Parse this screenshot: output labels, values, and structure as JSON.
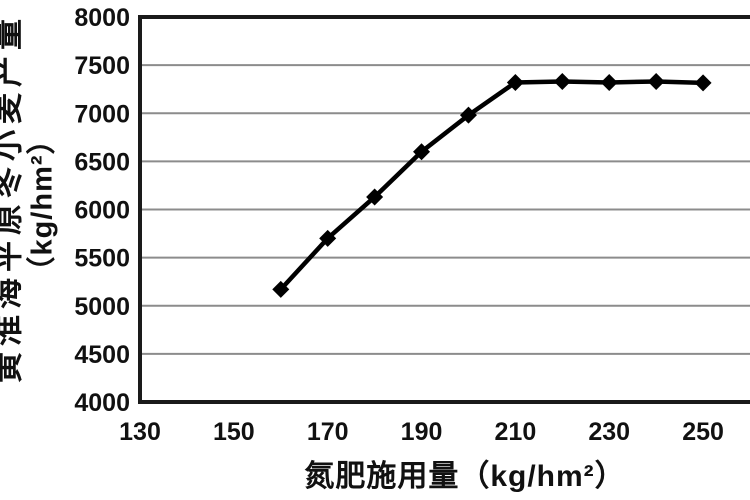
{
  "chart_data": {
    "type": "line",
    "title": "",
    "x": [
      160,
      170,
      180,
      190,
      200,
      210,
      220,
      230,
      240,
      250
    ],
    "series": [
      {
        "name": "黄淮海平原冬小麦产量",
        "values": [
          5170,
          5700,
          6130,
          6600,
          6980,
          7320,
          7330,
          7320,
          7330,
          7315
        ]
      }
    ],
    "xlabel": "氮肥施用量（kg/hm²）",
    "ylabel": "黄淮海平原冬小麦产量（kg/hm²）",
    "ylabel_lines": [
      "黄淮海平原冬小麦产量",
      "（kg/hm²）"
    ],
    "xlim": [
      130,
      260
    ],
    "ylim": [
      4000,
      8000
    ],
    "xticks": [
      130,
      150,
      170,
      190,
      210,
      230,
      250
    ],
    "yticks": [
      4000,
      4500,
      5000,
      5500,
      6000,
      6500,
      7000,
      7500,
      8000
    ],
    "grid": "horizontal-only",
    "legend": "none",
    "marker": "diamond",
    "colors": {
      "line": "#000000",
      "marker": "#000000",
      "grid": "#8c8c8c",
      "axis": "#1a1a1a",
      "text": "#111111",
      "background": "#ffffff"
    }
  }
}
